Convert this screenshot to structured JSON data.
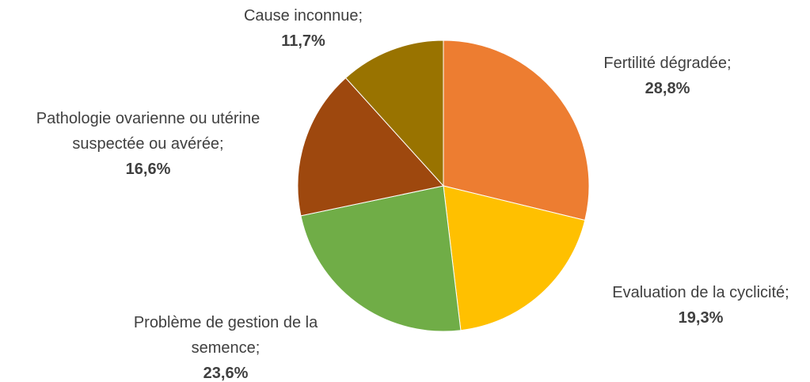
{
  "chart_data": {
    "type": "pie",
    "categories": [
      "Fertilité dégradée;",
      "Evaluation de la cyclicité;",
      "Problème de gestion de la semence;",
      "Pathologie ovarienne ou utérine suspectée ou avérée;",
      "Cause inconnue;"
    ],
    "values": [
      28.8,
      19.3,
      23.6,
      16.6,
      11.7
    ],
    "value_labels": [
      "28,8%",
      "19,3%",
      "23,6%",
      "16,6%",
      "11,7%"
    ],
    "colors": [
      "#ED7D31",
      "#FFC000",
      "#70AD47",
      "#9E480E",
      "#997300"
    ]
  }
}
